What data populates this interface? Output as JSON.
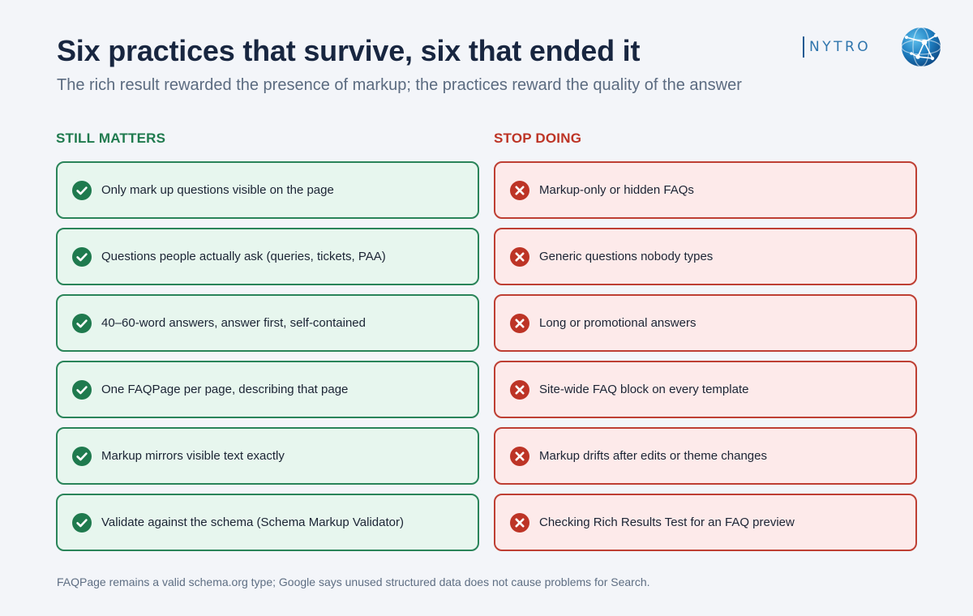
{
  "header": {
    "title": "Six practices that survive, six that ended it",
    "subtitle": "The rich result rewarded the presence of markup; the practices reward the quality of the answer"
  },
  "brand": {
    "logo_text": "NYTRO",
    "logo_icon": "globe-network-icon",
    "color": "#2f75ad"
  },
  "still_matters": {
    "heading": "STILL MATTERS",
    "icon": "check-circle-icon",
    "accent_color": "#1f7a4e",
    "items": [
      "Only mark up questions visible on the page",
      "Questions people actually ask (queries, tickets, PAA)",
      "40–60-word answers, answer first, self-contained",
      "One FAQPage per page, describing that page",
      "Markup mirrors visible text exactly",
      "Validate against the schema (Schema Markup Validator)"
    ]
  },
  "stop_doing": {
    "heading": "STOP DOING",
    "icon": "x-circle-icon",
    "accent_color": "#bd3426",
    "items": [
      "Markup-only or hidden FAQs",
      "Generic questions nobody types",
      "Long or promotional answers",
      "Site-wide FAQ block on every template",
      "Markup drifts after edits or theme changes",
      "Checking Rich Results Test for an FAQ preview"
    ]
  },
  "footnote": "FAQPage remains a valid schema.org type; Google says unused structured data does not cause problems for Search."
}
